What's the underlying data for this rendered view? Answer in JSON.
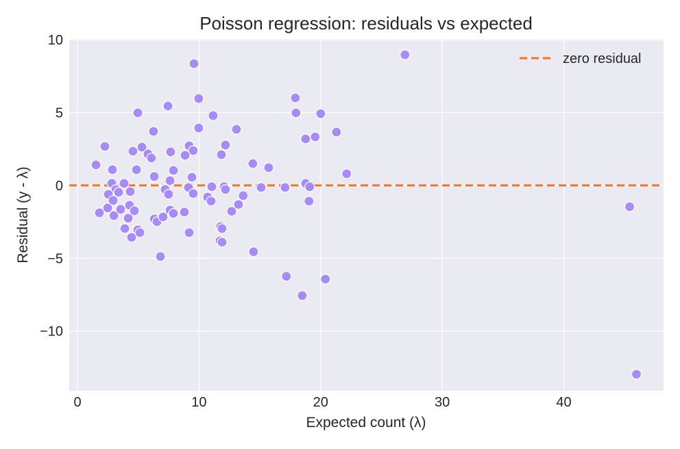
{
  "chart_data": {
    "type": "scatter",
    "title": "Poisson regression: residuals vs expected",
    "xlabel": "Expected count (λ)",
    "ylabel": "Residual (y - λ)",
    "xlim": [
      -0.68,
      48.2
    ],
    "ylim": [
      -14.1,
      10.05
    ],
    "xticks": [
      0,
      10,
      20,
      30,
      40
    ],
    "yticks": [
      10,
      5,
      0,
      -5,
      -10
    ],
    "xtick_labels": [
      "0",
      "10",
      "20",
      "30",
      "40"
    ],
    "ytick_labels": [
      "10",
      "5",
      "0",
      "−5",
      "−10"
    ],
    "grid": true,
    "legend": {
      "position": "top-right",
      "entries": [
        "zero residual"
      ]
    },
    "colors": {
      "points": "#a78bfa",
      "zero_line": "#f97316",
      "background": "#eaeaf2"
    },
    "reference_line": {
      "name": "zero residual",
      "y": 0,
      "style": "dashed"
    },
    "points": [
      [
        9.58,
        8.36
      ],
      [
        9.97,
        5.96
      ],
      [
        7.44,
        5.45
      ],
      [
        4.96,
        4.98
      ],
      [
        11.15,
        4.79
      ],
      [
        6.25,
        3.71
      ],
      [
        9.97,
        3.94
      ],
      [
        13.07,
        3.85
      ],
      [
        2.25,
        2.68
      ],
      [
        5.3,
        2.63
      ],
      [
        4.56,
        2.35
      ],
      [
        5.8,
        2.16
      ],
      [
        6.08,
        1.88
      ],
      [
        7.66,
        2.3
      ],
      [
        9.18,
        2.72
      ],
      [
        9.52,
        2.39
      ],
      [
        8.85,
        2.07
      ],
      [
        12.17,
        2.77
      ],
      [
        11.83,
        2.11
      ],
      [
        14.42,
        1.5
      ],
      [
        15.72,
        1.22
      ],
      [
        1.52,
        1.41
      ],
      [
        2.87,
        1.08
      ],
      [
        4.85,
        1.08
      ],
      [
        6.31,
        0.61
      ],
      [
        7.89,
        1.03
      ],
      [
        7.61,
        0.33
      ],
      [
        9.41,
        0.56
      ],
      [
        2.82,
        0.14
      ],
      [
        3.83,
        0.14
      ],
      [
        3.15,
        -0.28
      ],
      [
        3.38,
        -0.47
      ],
      [
        2.54,
        -0.61
      ],
      [
        4.34,
        -0.42
      ],
      [
        2.93,
        -1.03
      ],
      [
        7.21,
        -0.28
      ],
      [
        7.49,
        -0.61
      ],
      [
        9.13,
        -0.14
      ],
      [
        9.52,
        -0.56
      ],
      [
        11.04,
        -0.09
      ],
      [
        12.06,
        -0.09
      ],
      [
        12.17,
        -0.28
      ],
      [
        13.63,
        -0.7
      ],
      [
        13.24,
        -1.31
      ],
      [
        12.68,
        -1.78
      ],
      [
        10.7,
        -0.8
      ],
      [
        10.99,
        -1.08
      ],
      [
        15.1,
        -0.14
      ],
      [
        17.07,
        -0.14
      ],
      [
        18.76,
        0.14
      ],
      [
        19.1,
        -0.09
      ],
      [
        19.04,
        -1.08
      ],
      [
        2.48,
        -1.55
      ],
      [
        1.8,
        -1.88
      ],
      [
        2.99,
        -2.07
      ],
      [
        3.55,
        -1.64
      ],
      [
        4.28,
        -1.36
      ],
      [
        4.68,
        -1.74
      ],
      [
        4.17,
        -2.25
      ],
      [
        6.31,
        -2.3
      ],
      [
        6.54,
        -2.49
      ],
      [
        7.04,
        -2.16
      ],
      [
        7.61,
        -1.69
      ],
      [
        7.89,
        -1.92
      ],
      [
        8.79,
        -1.83
      ],
      [
        4.96,
        -3.05
      ],
      [
        5.13,
        -3.24
      ],
      [
        4.45,
        -3.57
      ],
      [
        3.89,
        -2.96
      ],
      [
        9.18,
        -3.24
      ],
      [
        11.77,
        -2.82
      ],
      [
        11.89,
        -2.96
      ],
      [
        11.72,
        -3.8
      ],
      [
        11.89,
        -3.9
      ],
      [
        6.82,
        -4.88
      ],
      [
        14.48,
        -4.55
      ],
      [
        17.92,
        6.01
      ],
      [
        17.97,
        4.98
      ],
      [
        20.0,
        4.93
      ],
      [
        18.76,
        3.19
      ],
      [
        19.55,
        3.33
      ],
      [
        21.3,
        3.66
      ],
      [
        22.14,
        0.8
      ],
      [
        17.18,
        -6.24
      ],
      [
        18.48,
        -7.56
      ],
      [
        20.39,
        -6.43
      ],
      [
        26.93,
        8.97
      ],
      [
        45.41,
        -1.46
      ],
      [
        45.97,
        -12.96
      ]
    ]
  }
}
